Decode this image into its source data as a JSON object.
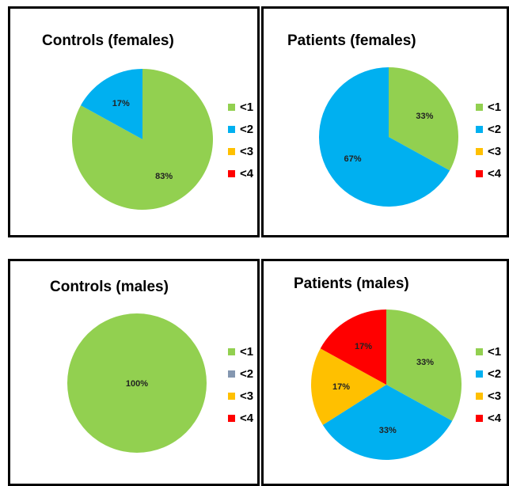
{
  "colors": {
    "c1": "#92D050",
    "c2": "#00B0F0",
    "c2_alt": "#8497B0",
    "c3": "#FFC000",
    "c4": "#FF0000"
  },
  "chart_data": [
    {
      "type": "pie",
      "title": "Controls (females)",
      "categories": [
        "<1",
        "<2",
        "<3",
        "<4"
      ],
      "values": [
        83,
        17,
        0,
        0
      ],
      "labels": [
        "83%",
        "17%",
        "",
        ""
      ],
      "legend_colors": [
        "#92D050",
        "#00B0F0",
        "#FFC000",
        "#FF0000"
      ],
      "legend": "right"
    },
    {
      "type": "pie",
      "title": "Patients (females)",
      "categories": [
        "<1",
        "<2",
        "<3",
        "<4"
      ],
      "values": [
        33,
        67,
        0,
        0
      ],
      "labels": [
        "33%",
        "67%",
        "",
        ""
      ],
      "legend_colors": [
        "#92D050",
        "#00B0F0",
        "#FFC000",
        "#FF0000"
      ],
      "legend": "right"
    },
    {
      "type": "pie",
      "title": "Controls (males)",
      "categories": [
        "<1",
        "<2",
        "<3",
        "<4"
      ],
      "values": [
        100,
        0,
        0,
        0
      ],
      "labels": [
        "100%",
        "",
        "",
        ""
      ],
      "legend_colors": [
        "#92D050",
        "#8497B0",
        "#FFC000",
        "#FF0000"
      ],
      "legend": "right"
    },
    {
      "type": "pie",
      "title": "Patients (males)",
      "categories": [
        "<1",
        "<2",
        "<3",
        "<4"
      ],
      "values": [
        33,
        33,
        17,
        17
      ],
      "labels": [
        "33%",
        "33%",
        "17%",
        "17%"
      ],
      "legend_colors": [
        "#92D050",
        "#00B0F0",
        "#FFC000",
        "#FF0000"
      ],
      "legend": "right"
    }
  ]
}
